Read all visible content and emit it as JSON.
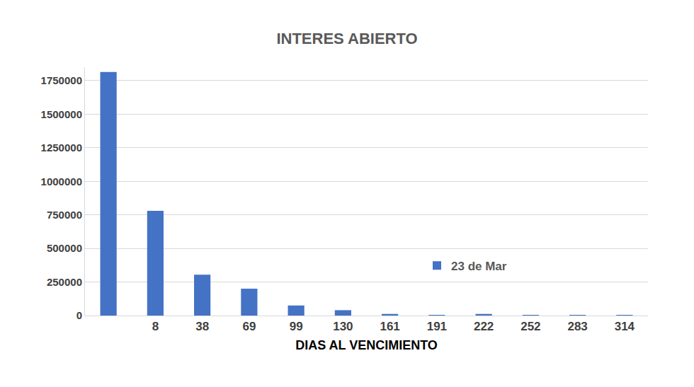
{
  "chart_data": {
    "type": "bar",
    "title": "INTERES ABIERTO",
    "x_label": "DIAS AL VENCIMIENTO",
    "categories": [
      null,
      "8",
      "38",
      "69",
      "99",
      "130",
      "161",
      "191",
      "222",
      "252",
      "283",
      "314"
    ],
    "series": [
      {
        "name": "23 de Mar",
        "color": "#4472c4",
        "values": [
          1815000,
          780000,
          305000,
          200000,
          75000,
          40000,
          12000,
          3000,
          12000,
          2000,
          1000,
          500
        ]
      }
    ],
    "ylim": [
      0,
      1850000
    ],
    "yticks": [
      0,
      250000,
      500000,
      750000,
      1000000,
      1250000,
      1500000,
      1750000
    ],
    "grid": true,
    "legend": "right"
  }
}
